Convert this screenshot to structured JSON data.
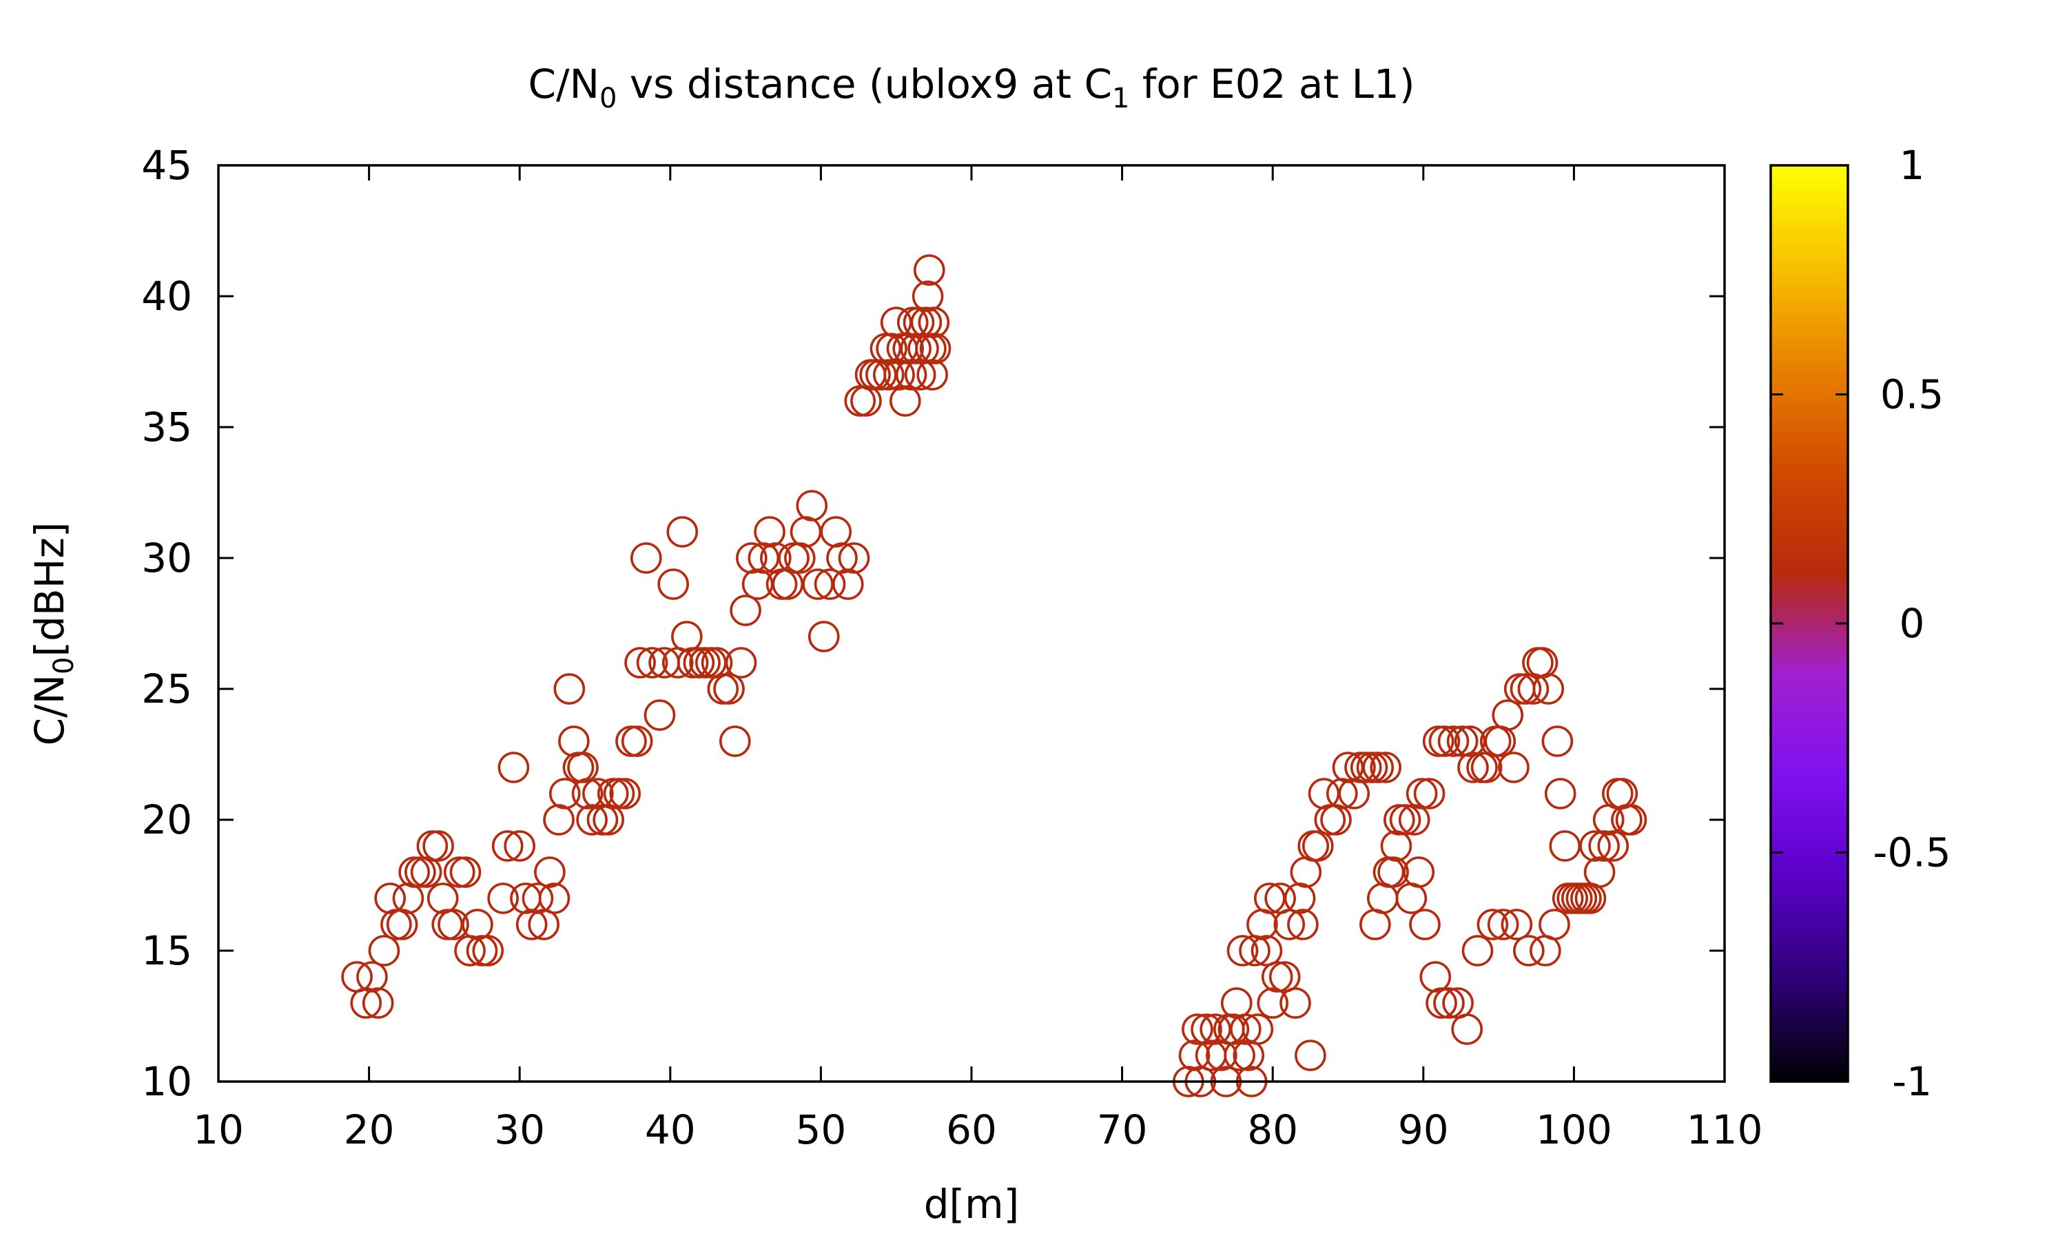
{
  "chart_data": {
    "type": "scatter",
    "title": {
      "main": "C/N",
      "sub1": "0",
      "mid": " vs distance (ublox9 at C",
      "sub2": "1",
      "end": " for E02 at L1)"
    },
    "xlabel": "d[m]",
    "ylabel": {
      "main": "C/N",
      "sub": "0",
      "end": "[dBHz]"
    },
    "xlim": [
      10,
      110
    ],
    "ylim": [
      10,
      45
    ],
    "xticks": [
      10,
      20,
      30,
      40,
      50,
      60,
      70,
      80,
      90,
      100,
      110
    ],
    "yticks": [
      10,
      15,
      20,
      25,
      30,
      35,
      40,
      45
    ],
    "grid": false,
    "marker": "open-circle",
    "marker_color": "#b82a0e",
    "colorbar": {
      "range": [
        -1,
        1
      ],
      "ticks": [
        "-1",
        "-0.5",
        "0",
        "0.5",
        "1"
      ],
      "palette": [
        "#000000",
        "#2d0078",
        "#5a00c8",
        "#8010f0",
        "#a020d0",
        "#b82a0e",
        "#d04a00",
        "#e88000",
        "#f8c000",
        "#ffff00"
      ]
    },
    "series": [
      {
        "points": [
          [
            19.2,
            14
          ],
          [
            19.8,
            13
          ],
          [
            20.2,
            14
          ],
          [
            20.6,
            13
          ],
          [
            21,
            15
          ],
          [
            21.4,
            17
          ],
          [
            21.8,
            16
          ],
          [
            22.2,
            16
          ],
          [
            22.6,
            17
          ],
          [
            23,
            18
          ],
          [
            23.4,
            18
          ],
          [
            23.8,
            18
          ],
          [
            24.2,
            19
          ],
          [
            24.6,
            19
          ],
          [
            24.9,
            17
          ],
          [
            25.2,
            16
          ],
          [
            25.6,
            16
          ],
          [
            26,
            18
          ],
          [
            26.4,
            18
          ],
          [
            26.7,
            15
          ],
          [
            27.2,
            16
          ],
          [
            27.5,
            15
          ],
          [
            27.9,
            15
          ],
          [
            28.9,
            17
          ],
          [
            29.2,
            19
          ],
          [
            29.6,
            22
          ],
          [
            30,
            19
          ],
          [
            30.4,
            17
          ],
          [
            30.8,
            16
          ],
          [
            31.2,
            17
          ],
          [
            31.6,
            16
          ],
          [
            32,
            18
          ],
          [
            32.3,
            17
          ],
          [
            32.6,
            20
          ],
          [
            33,
            21
          ],
          [
            33.3,
            25
          ],
          [
            33.6,
            23
          ],
          [
            33.9,
            22
          ],
          [
            34.2,
            22
          ],
          [
            34.5,
            21
          ],
          [
            34.8,
            20
          ],
          [
            35.2,
            21
          ],
          [
            35.5,
            20
          ],
          [
            35.9,
            20
          ],
          [
            36.2,
            21
          ],
          [
            36.6,
            21
          ],
          [
            37,
            21
          ],
          [
            37.4,
            23
          ],
          [
            37.8,
            23
          ],
          [
            38,
            26
          ],
          [
            38.4,
            30
          ],
          [
            38.8,
            26
          ],
          [
            39.3,
            24
          ],
          [
            39.6,
            26
          ],
          [
            40.2,
            29
          ],
          [
            40.5,
            26
          ],
          [
            40.8,
            31
          ],
          [
            41.1,
            27
          ],
          [
            41.5,
            26
          ],
          [
            41.9,
            26
          ],
          [
            42.3,
            26
          ],
          [
            42.7,
            26
          ],
          [
            43.1,
            26
          ],
          [
            43.5,
            25
          ],
          [
            43.9,
            25
          ],
          [
            44.3,
            23
          ],
          [
            44.7,
            26
          ],
          [
            45,
            28
          ],
          [
            45.4,
            30
          ],
          [
            45.8,
            29
          ],
          [
            46.2,
            30
          ],
          [
            46.6,
            31
          ],
          [
            47,
            30
          ],
          [
            47.4,
            29
          ],
          [
            47.8,
            29
          ],
          [
            48.2,
            30
          ],
          [
            48.6,
            30
          ],
          [
            49,
            31
          ],
          [
            49.4,
            32
          ],
          [
            49.8,
            29
          ],
          [
            50.2,
            27
          ],
          [
            50.6,
            29
          ],
          [
            51,
            31
          ],
          [
            51.4,
            30
          ],
          [
            51.8,
            29
          ],
          [
            52.2,
            30
          ],
          [
            52.6,
            36
          ],
          [
            53,
            36
          ],
          [
            53.3,
            37
          ],
          [
            53.6,
            37
          ],
          [
            54,
            37
          ],
          [
            54.3,
            38
          ],
          [
            54.5,
            37
          ],
          [
            54.7,
            38
          ],
          [
            55,
            39
          ],
          [
            55.2,
            37
          ],
          [
            55.4,
            38
          ],
          [
            55.6,
            36
          ],
          [
            55.8,
            38
          ],
          [
            56,
            37
          ],
          [
            56.1,
            39
          ],
          [
            56.3,
            38
          ],
          [
            56.5,
            39
          ],
          [
            56.6,
            37
          ],
          [
            56.8,
            38
          ],
          [
            57,
            39
          ],
          [
            57.1,
            40
          ],
          [
            57.2,
            41
          ],
          [
            57.3,
            38
          ],
          [
            57.4,
            37
          ],
          [
            57.5,
            39
          ],
          [
            57.6,
            38
          ],
          [
            74.4,
            10
          ],
          [
            74.8,
            11
          ],
          [
            75,
            12
          ],
          [
            75.2,
            10
          ],
          [
            75.6,
            12
          ],
          [
            75.9,
            11
          ],
          [
            76.2,
            12
          ],
          [
            76.6,
            11
          ],
          [
            76.9,
            10
          ],
          [
            77.1,
            12
          ],
          [
            77.4,
            12
          ],
          [
            77.6,
            13
          ],
          [
            77.8,
            11
          ],
          [
            78,
            15
          ],
          [
            78.2,
            12
          ],
          [
            78.4,
            11
          ],
          [
            78.6,
            10
          ],
          [
            78.8,
            15
          ],
          [
            79,
            12
          ],
          [
            79.3,
            16
          ],
          [
            79.6,
            15
          ],
          [
            79.8,
            17
          ],
          [
            80,
            13
          ],
          [
            80.3,
            14
          ],
          [
            80.5,
            17
          ],
          [
            80.8,
            14
          ],
          [
            81.1,
            16
          ],
          [
            81.5,
            13
          ],
          [
            81.8,
            17
          ],
          [
            82,
            16
          ],
          [
            82.2,
            18
          ],
          [
            82.5,
            11
          ],
          [
            82.7,
            19
          ],
          [
            83,
            19
          ],
          [
            83.4,
            21
          ],
          [
            83.8,
            20
          ],
          [
            84.2,
            20
          ],
          [
            84.6,
            21
          ],
          [
            85,
            22
          ],
          [
            85.4,
            21
          ],
          [
            85.8,
            22
          ],
          [
            86.2,
            22
          ],
          [
            86.6,
            22
          ],
          [
            86.8,
            16
          ],
          [
            87,
            22
          ],
          [
            87.3,
            17
          ],
          [
            87.5,
            22
          ],
          [
            87.7,
            18
          ],
          [
            88,
            18
          ],
          [
            88.2,
            19
          ],
          [
            88.4,
            20
          ],
          [
            88.8,
            20
          ],
          [
            89.2,
            17
          ],
          [
            89.4,
            20
          ],
          [
            89.7,
            18
          ],
          [
            89.9,
            21
          ],
          [
            90.1,
            16
          ],
          [
            90.4,
            21
          ],
          [
            90.8,
            14
          ],
          [
            91,
            23
          ],
          [
            91.2,
            13
          ],
          [
            91.4,
            23
          ],
          [
            91.7,
            13
          ],
          [
            92,
            23
          ],
          [
            92.3,
            13
          ],
          [
            92.6,
            23
          ],
          [
            92.9,
            12
          ],
          [
            93.1,
            23
          ],
          [
            93.3,
            22
          ],
          [
            93.6,
            15
          ],
          [
            93.9,
            22
          ],
          [
            94.2,
            22
          ],
          [
            94.6,
            16
          ],
          [
            94.8,
            23
          ],
          [
            95.1,
            23
          ],
          [
            95.3,
            16
          ],
          [
            95.6,
            24
          ],
          [
            96,
            22
          ],
          [
            96.2,
            16
          ],
          [
            96.4,
            25
          ],
          [
            96.8,
            25
          ],
          [
            97,
            15
          ],
          [
            97.3,
            25
          ],
          [
            97.6,
            26
          ],
          [
            97.9,
            26
          ],
          [
            98.1,
            15
          ],
          [
            98.3,
            25
          ],
          [
            98.7,
            16
          ],
          [
            98.9,
            23
          ],
          [
            99.1,
            21
          ],
          [
            99.4,
            19
          ],
          [
            99.6,
            17
          ],
          [
            99.9,
            17
          ],
          [
            100.2,
            17
          ],
          [
            100.5,
            17
          ],
          [
            100.8,
            17
          ],
          [
            101.1,
            17
          ],
          [
            101.4,
            19
          ],
          [
            101.7,
            18
          ],
          [
            102,
            19
          ],
          [
            102.3,
            20
          ],
          [
            102.6,
            19
          ],
          [
            102.9,
            21
          ],
          [
            103.2,
            21
          ],
          [
            103.5,
            20
          ],
          [
            103.8,
            20
          ]
        ]
      }
    ]
  }
}
